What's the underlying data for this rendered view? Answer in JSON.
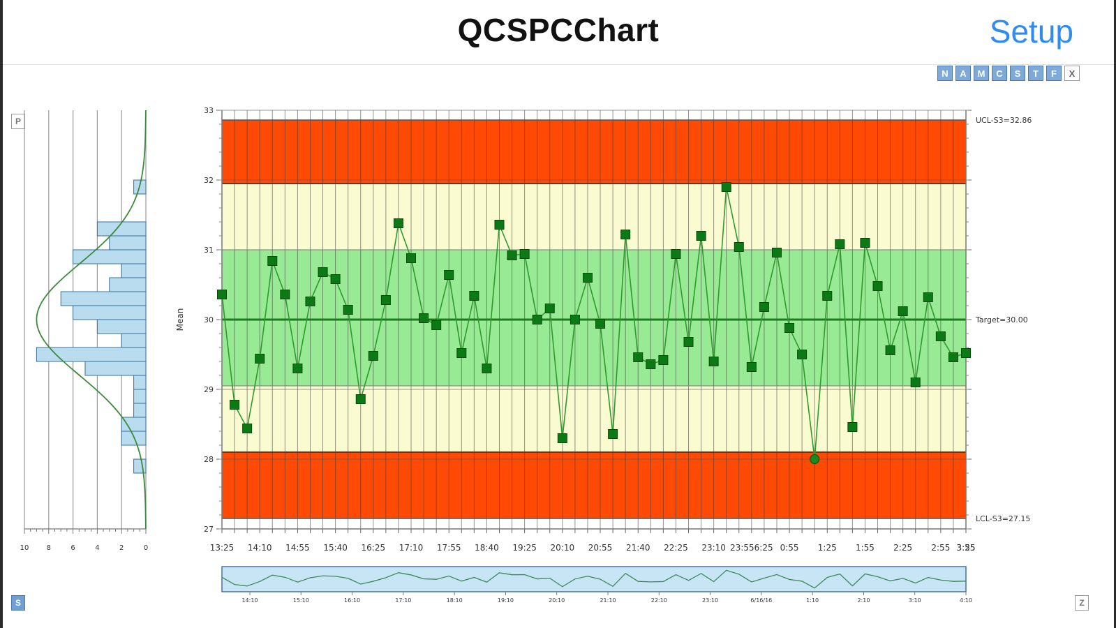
{
  "app": {
    "title": "QCSPCChart",
    "setup_label": "Setup"
  },
  "toolbar": {
    "buttons": [
      {
        "label": "N"
      },
      {
        "label": "A"
      },
      {
        "label": "M"
      },
      {
        "label": "C"
      },
      {
        "label": "S"
      },
      {
        "label": "T"
      },
      {
        "label": "F"
      },
      {
        "label": "X"
      }
    ]
  },
  "corner_buttons": {
    "p": "P",
    "s": "S",
    "z": "Z"
  },
  "colors": {
    "outer_zone": "#ff4a05",
    "warning_zone": "#fbfbd2",
    "center_zone": "#98ea94",
    "line": "#2e9a2e",
    "marker": "#0c7a14",
    "histogram_bar": "#b9dcef",
    "histogram_edge": "#3a6f9c",
    "scroll_fill": "#c7e5f5",
    "link": "#2e8bf0"
  },
  "chart_data": {
    "type": "line",
    "ylabel": "Mean",
    "ylim": [
      27,
      33
    ],
    "yticks": [
      "27",
      "28",
      "29",
      "30",
      "31",
      "32",
      "33"
    ],
    "control_lines": {
      "ucl": {
        "value": 32.86,
        "label": "UCL-S3=32.86"
      },
      "target": {
        "value": 30.0,
        "label": "Target=30.00"
      },
      "lcl": {
        "value": 27.15,
        "label": "LCL-S3=27.15"
      }
    },
    "zones": {
      "outer_limits": [
        28.1,
        31.95
      ],
      "inner_limits": [
        29.05,
        31.0
      ]
    },
    "xtick_labels": [
      "13:25",
      "14:10",
      "14:55",
      "15:40",
      "16:25",
      "17:10",
      "17:55",
      "18:40",
      "19:25",
      "20:10",
      "20:55",
      "21:40",
      "22:25",
      "23:10",
      "23:556:25",
      "0:55",
      "1:25",
      "1:55",
      "2:25",
      "2:55",
      "3:25",
      "3:55"
    ],
    "series": [
      {
        "values": [
          30.36,
          28.78,
          28.44,
          29.44,
          30.84,
          30.36,
          29.3,
          30.26,
          30.68,
          30.58,
          30.14,
          28.86,
          29.48,
          30.28,
          31.38,
          30.88,
          30.02,
          29.92,
          30.64,
          29.52,
          30.34,
          29.3,
          31.36,
          30.92,
          30.94,
          30.0,
          30.16,
          28.3,
          30.0,
          30.6,
          29.94,
          28.36,
          31.22,
          29.46,
          29.36,
          29.42,
          30.94,
          29.68,
          31.2,
          29.4,
          31.9,
          31.04,
          29.32,
          30.18,
          30.96,
          29.88,
          29.5,
          28.0,
          30.34,
          31.08,
          28.46,
          31.1,
          30.48,
          29.56,
          30.12,
          29.1,
          30.32,
          29.76,
          29.46,
          29.52
        ]
      }
    ],
    "histogram": {
      "xtick_labels": [
        "10",
        "8",
        "6",
        "4",
        "2",
        "0"
      ],
      "xlim": [
        0,
        10
      ],
      "bins": [
        {
          "low": 31.8,
          "high": 32.0,
          "count": 1
        },
        {
          "low": 31.2,
          "high": 31.4,
          "count": 4
        },
        {
          "low": 31.0,
          "high": 31.2,
          "count": 3
        },
        {
          "low": 30.8,
          "high": 31.0,
          "count": 6
        },
        {
          "low": 30.6,
          "high": 30.8,
          "count": 2
        },
        {
          "low": 30.4,
          "high": 30.6,
          "count": 3
        },
        {
          "low": 30.2,
          "high": 30.4,
          "count": 7
        },
        {
          "low": 30.0,
          "high": 30.2,
          "count": 6
        },
        {
          "low": 29.8,
          "high": 30.0,
          "count": 4
        },
        {
          "low": 29.6,
          "high": 29.8,
          "count": 2
        },
        {
          "low": 29.4,
          "high": 29.6,
          "count": 9
        },
        {
          "low": 29.2,
          "high": 29.4,
          "count": 5
        },
        {
          "low": 29.0,
          "high": 29.2,
          "count": 1
        },
        {
          "low": 28.8,
          "high": 29.0,
          "count": 1
        },
        {
          "low": 28.6,
          "high": 28.8,
          "count": 1
        },
        {
          "low": 28.4,
          "high": 28.6,
          "count": 2
        },
        {
          "low": 28.2,
          "high": 28.4,
          "count": 2
        },
        {
          "low": 27.8,
          "high": 28.0,
          "count": 1
        }
      ]
    },
    "scroll_axis_labels": [
      "14:10",
      "15:10",
      "16:10",
      "17:10",
      "18:10",
      "19:10",
      "20:10",
      "21:10",
      "22:10",
      "23:10",
      "6/16/16",
      "1:10",
      "2:10",
      "3:10",
      "4:10"
    ]
  }
}
